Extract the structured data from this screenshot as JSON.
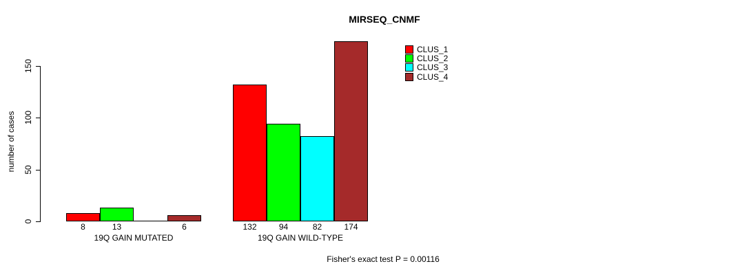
{
  "chart_data": {
    "type": "bar",
    "title": "MIRSEQ_CNMF",
    "ylabel": "number of cases",
    "categories": [
      "19Q GAIN MUTATED",
      "19Q GAIN WILD-TYPE"
    ],
    "series": [
      {
        "name": "CLUS_1",
        "color": "#ff0000",
        "values": [
          8,
          132
        ]
      },
      {
        "name": "CLUS_2",
        "color": "#00ff00",
        "values": [
          13,
          94
        ]
      },
      {
        "name": "CLUS_3",
        "color": "#00ffff",
        "values": [
          0,
          82
        ]
      },
      {
        "name": "CLUS_4",
        "color": "#a52a2a",
        "values": [
          6,
          174
        ]
      }
    ],
    "bar_labels": [
      [
        "8",
        "13",
        "",
        "6"
      ],
      [
        "132",
        "94",
        "82",
        "174"
      ]
    ],
    "yticks": [
      0,
      50,
      100,
      150
    ],
    "ylim": [
      0,
      175
    ],
    "grid": false,
    "legend_position": "inside-top-right",
    "annotation": "Fisher's exact test P = 0.00116",
    "axis_color": "#000000",
    "text_color": "#000000",
    "background": "#ffffff"
  }
}
